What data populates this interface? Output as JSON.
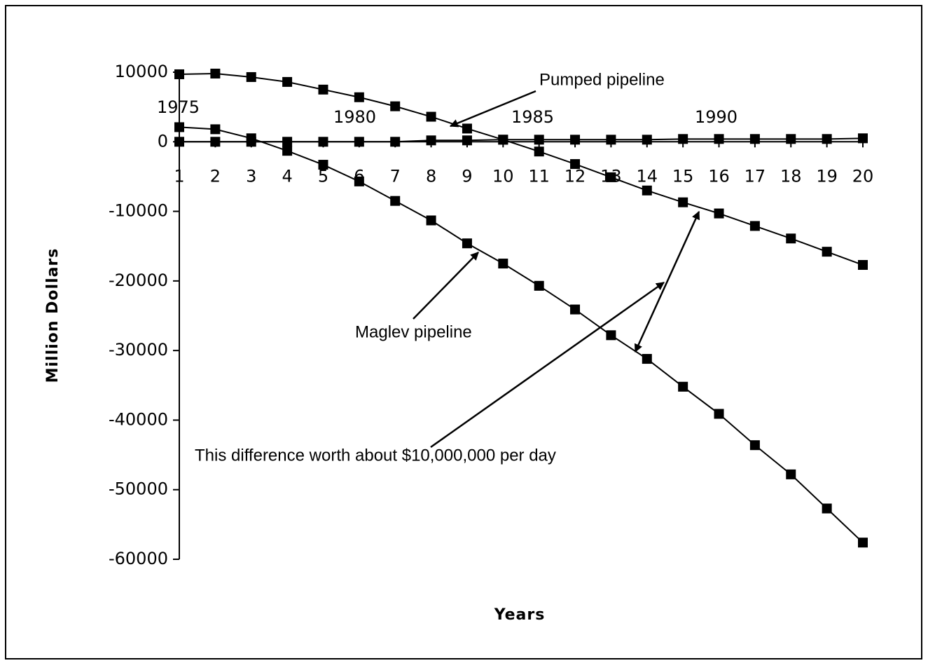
{
  "chart_data": {
    "type": "line",
    "x_label": "Years",
    "y_label": "Million Dollars",
    "categories": [
      "1",
      "2",
      "3",
      "4",
      "5",
      "6",
      "7",
      "8",
      "9",
      "10",
      "11",
      "12",
      "13",
      "14",
      "15",
      "16",
      "17",
      "18",
      "19",
      "20"
    ],
    "series": [
      {
        "color": "#000000",
        "values": [
          9700,
          9800,
          9300,
          8600,
          7500,
          6400,
          5100,
          3600,
          1900,
          300,
          -1400,
          -3200,
          -5100,
          -7000,
          -8700,
          -10300,
          -12100,
          -13900,
          -15800,
          -17700
        ]
      },
      {
        "color": "#000000",
        "values": [
          2100,
          1800,
          500,
          -1300,
          -3300,
          -5700,
          -8500,
          -11300,
          -14600,
          -17500,
          -20700,
          -24100,
          -27800,
          -31200,
          -35200,
          -39100,
          -43600,
          -47800,
          -52700,
          -57600
        ]
      },
      {
        "color": "#000000",
        "values": [
          0,
          0,
          0,
          0,
          0,
          0,
          0,
          200,
          200,
          300,
          300,
          300,
          300,
          300,
          400,
          400,
          400,
          400,
          400,
          500
        ]
      }
    ],
    "ylim": [
      -60000,
      10000
    ],
    "yticks": [
      10000,
      0,
      -10000,
      -20000,
      -30000,
      -40000,
      -50000,
      -60000
    ],
    "annotations": [
      "Pumped pipeline",
      "Maglev pipeline",
      "This difference worth about $10,000,000 per day",
      "1975",
      "1980",
      "1985",
      "1990"
    ]
  }
}
